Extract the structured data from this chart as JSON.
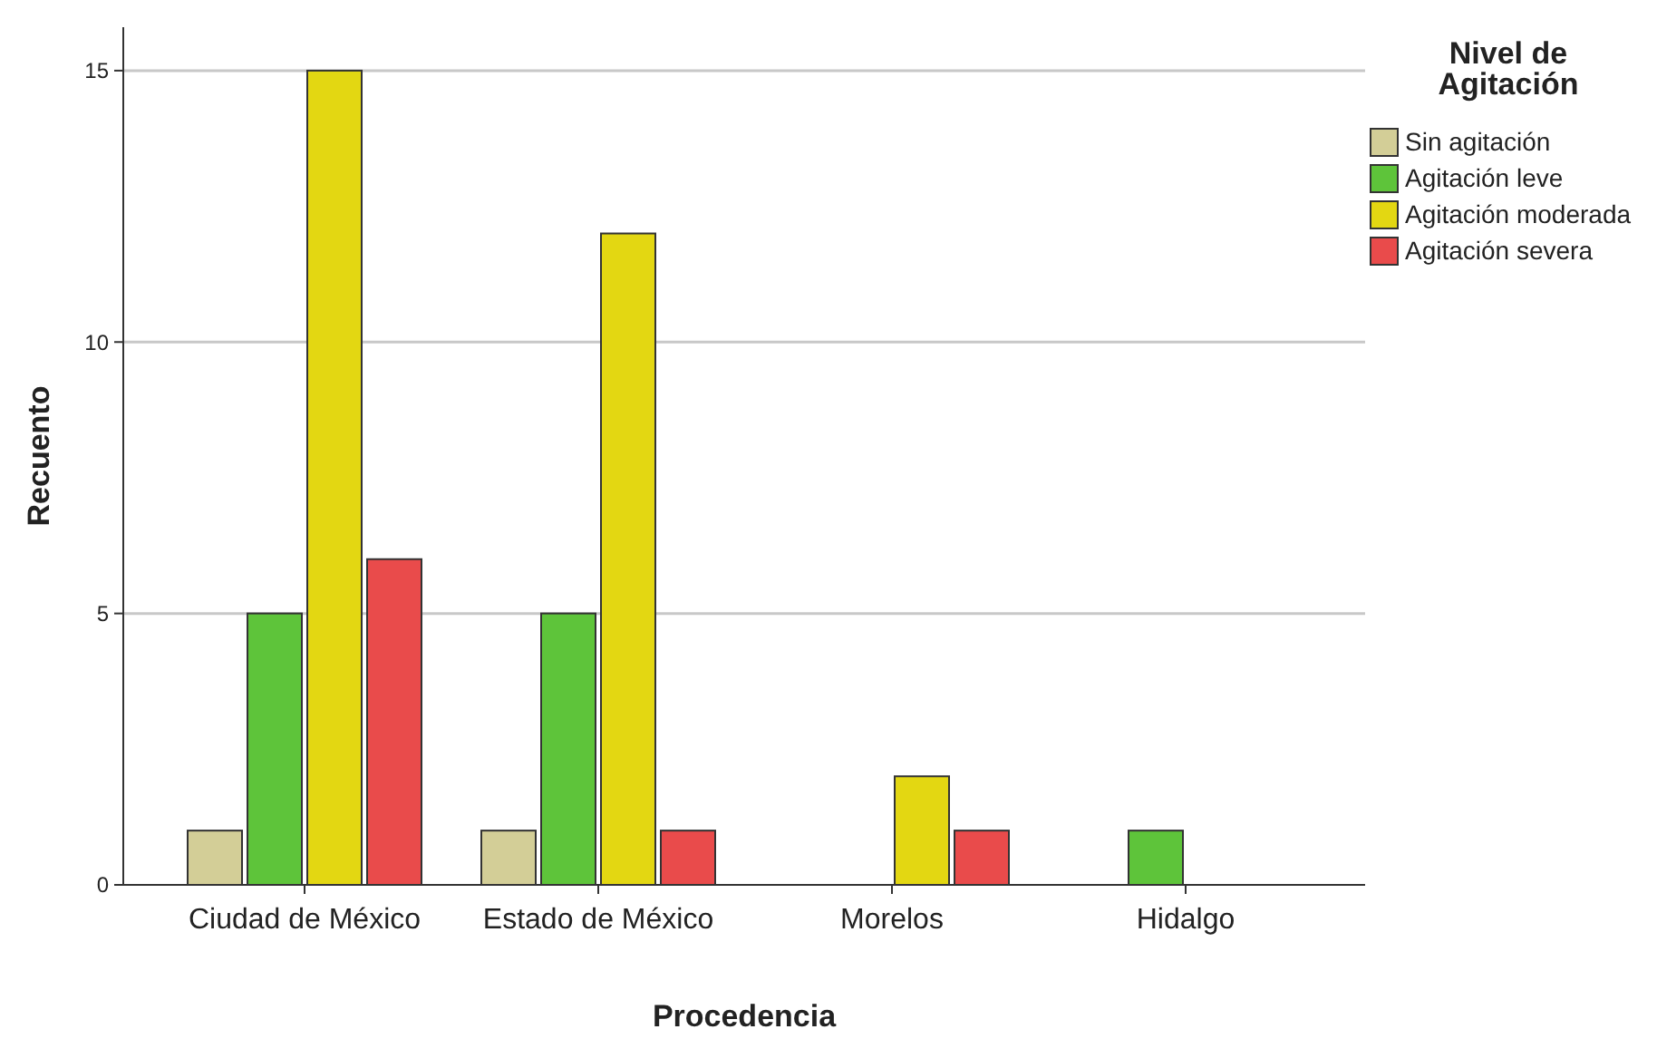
{
  "chart_data": {
    "type": "bar",
    "xlabel": "Procedencia",
    "ylabel": "Recuento",
    "legend_title": "Nivel de Agitación",
    "categories": [
      "Ciudad de México",
      "Estado de México",
      "Morelos",
      "Hidalgo"
    ],
    "ylim": [
      0,
      15.8
    ],
    "yticks": [
      0,
      5,
      10,
      15
    ],
    "grid": "y",
    "legend": "top right",
    "series": [
      {
        "name": "Sin agitación",
        "color": "#d3ce97",
        "values": [
          1,
          1,
          null,
          null
        ]
      },
      {
        "name": "Agitación leve",
        "color": "#5ec43a",
        "values": [
          5,
          5,
          null,
          1
        ]
      },
      {
        "name": "Agitación moderada",
        "color": "#e3d712",
        "values": [
          15,
          12,
          2,
          null
        ]
      },
      {
        "name": "Agitación severa",
        "color": "#e94b4b",
        "values": [
          6,
          1,
          1,
          null
        ]
      }
    ]
  }
}
